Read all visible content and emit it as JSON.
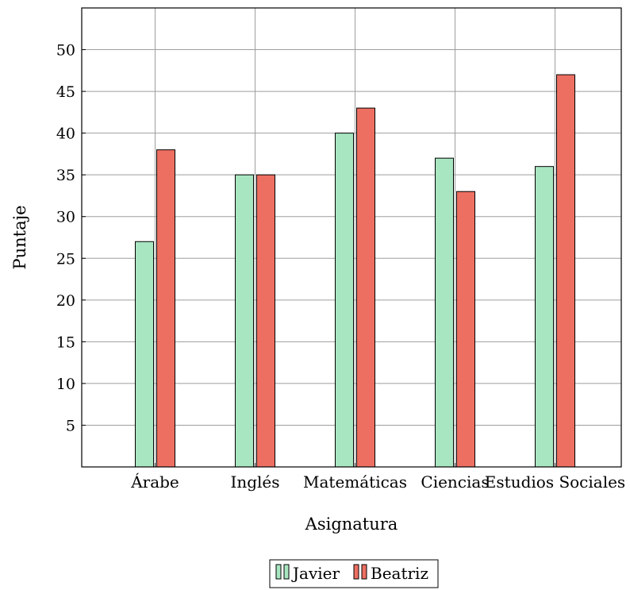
{
  "chart_data": {
    "type": "bar",
    "title": "",
    "xlabel": "Asignatura",
    "ylabel": "Puntaje",
    "categories": [
      "Árabe",
      "Inglés",
      "Matemáticas",
      "Ciencias",
      "Estudios Sociales"
    ],
    "series": [
      {
        "name": "Javier",
        "values": [
          27,
          35,
          40,
          37,
          36
        ],
        "color": "#a8e6c1"
      },
      {
        "name": "Beatriz",
        "values": [
          38,
          35,
          43,
          33,
          47
        ],
        "color": "#ed6f62"
      }
    ],
    "ylim": [
      0,
      55
    ],
    "yticks": [
      "5",
      "10",
      "15",
      "20",
      "25",
      "30",
      "35",
      "40",
      "45",
      "50"
    ],
    "grid": true,
    "legend_position": "bottom-center"
  }
}
